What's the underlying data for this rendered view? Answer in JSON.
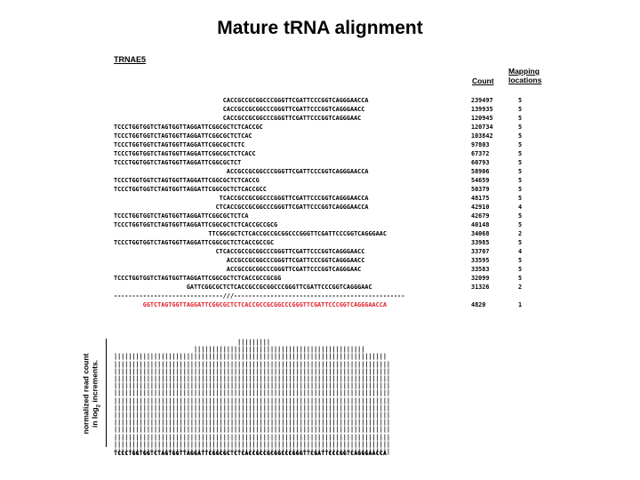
{
  "title": "Mature tRNA alignment",
  "gene_name": "TRNAE5",
  "headers": {
    "count": "Count",
    "mapping": "Mapping locations"
  },
  "rows": [
    {
      "seq": "                              CACCGCCGCGGCCCGGGTTCGATTCCCGGTCAGGGAACCA",
      "count": "239497",
      "map": "5"
    },
    {
      "seq": "                              CACCGCCGCGGCCCGGGTTCGATTCCCGGTCAGGGAACC",
      "count": "139935",
      "map": "5"
    },
    {
      "seq": "                              CACCGCCGCGGCCCGGGTTCGATTCCCGGTCAGGGAAC",
      "count": "120945",
      "map": "5"
    },
    {
      "seq": "TCCCTGGTGGTCTAGTGGTTAGGATTCGGCGCTCTCACCGC",
      "count": "120734",
      "map": "5"
    },
    {
      "seq": "TCCCTGGTGGTCTAGTGGTTAGGATTCGGCGCTCTCAC",
      "count": "103842",
      "map": "5"
    },
    {
      "seq": "TCCCTGGTGGTCTAGTGGTTAGGATTCGGCGCTCTC",
      "count": "97803",
      "map": "5"
    },
    {
      "seq": "TCCCTGGTGGTCTAGTGGTTAGGATTCGGCGCTCTCACC",
      "count": "67372",
      "map": "5"
    },
    {
      "seq": "TCCCTGGTGGTCTAGTGGTTAGGATTCGGCGCTCT",
      "count": "60793",
      "map": "5"
    },
    {
      "seq": "                               ACCGCCGCGGCCCGGGTTCGATTCCCGGTCAGGGAACCA",
      "count": "58906",
      "map": "5"
    },
    {
      "seq": "TCCCTGGTGGTCTAGTGGTTAGGATTCGGCGCTCTCACCG",
      "count": "54659",
      "map": "5"
    },
    {
      "seq": "TCCCTGGTGGTCTAGTGGTTAGGATTCGGCGCTCTCACCGCC",
      "count": "50379",
      "map": "5"
    },
    {
      "seq": "                             TCACCGCCGCGGCCCGGGTTCGATTCCCGGTCAGGGAACCA",
      "count": "48175",
      "map": "5"
    },
    {
      "seq": "                            CTCACCGCCGCGGCCCGGGTTCGATTCCCGGTCAGGGAACCA",
      "count": "42910",
      "map": "4"
    },
    {
      "seq": "TCCCTGGTGGTCTAGTGGTTAGGATTCGGCGCTCTCA",
      "count": "42679",
      "map": "5"
    },
    {
      "seq": "TCCCTGGTGGTCTAGTGGTTAGGATTCGGCGCTCTCACCGCCGCG",
      "count": "40148",
      "map": "5"
    },
    {
      "seq": "                          TTCGGCGCTCTCACCGCCGCGGCCCGGGTTCGATTCCCGGTCAGGGAAC",
      "count": "34068",
      "map": "2"
    },
    {
      "seq": "TCCCTGGTGGTCTAGTGGTTAGGATTCGGCGCTCTCACCGCCGC",
      "count": "33985",
      "map": "5"
    },
    {
      "seq": "                            CTCACCGCCGCGGCCCGGGTTCGATTCCCGGTCAGGGAACC",
      "count": "33707",
      "map": "4"
    },
    {
      "seq": "                               ACCGCCGCGGCCCGGGTTCGATTCCCGGTCAGGGAACC",
      "count": "33595",
      "map": "5"
    },
    {
      "seq": "                               ACCGCCGCGGCCCGGGTTCGATTCCCGGTCAGGGAAC",
      "count": "33583",
      "map": "5"
    },
    {
      "seq": "TCCCTGGTGGTCTAGTGGTTAGGATTCGGCGCTCTCACCGCCGCGG",
      "count": "32099",
      "map": "5"
    },
    {
      "seq": "                    GATTCGGCGCTCTCACCGCCGCGGCCCGGGTTCGATTCCCGGTCAGGGAAC",
      "count": "31326",
      "map": "2"
    }
  ],
  "separator": "------------------------------///-----------------------------------------------",
  "highlight": {
    "seq": "        GGTCTAGTGGTTAGGATTCGGCGCTCTCACCGCCGCGGCCCGGGTTCGATTCCCGGTCAGGGAACCA",
    "count": "4820",
    "map": "1"
  },
  "histogram": [
    "                                  |||||||||",
    "                      |||||||||||||||||||||||||||||||||||||||||||||||",
    "|||||||||||||||||||||||||||||||||||||||||||||||||||||||||||||||||||||||||||",
    "||||||||||||||||||||||||||||||||||||||||||||||||||||||||||||||||||||||||||||",
    "||||||||||||||||||||||||||||||||||||||||||||||||||||||||||||||||||||||||||||",
    "||||||||||||||||||||||||||||||||||||||||||||||||||||||||||||||||||||||||||||",
    "||||||||||||||||||||||||||||||||||||||||||||||||||||||||||||||||||||||||||||",
    "||||||||||||||||||||||||||||||||||||||||||||||||||||||||||||||||||||||||||||",
    "||||||||||||||||||||||||||||||||||||||||||||||||||||||||||||||||||||||||||||",
    "||||||||||||||||||||||||||||||||||||||||||||||||||||||||||||||||||||||||||||",
    "||||||||||||||||||||||||||||||||||||||||||||||||||||||||||||||||||||||||||||",
    "||||||||||||||||||||||||||||||||||||||||||||||||||||||||||||||||||||||||||||",
    "||||||||||||||||||||||||||||||||||||||||||||||||||||||||||||||||||||||||||||",
    "||||||||||||||||||||||||||||||||||||||||||||||||||||||||||||||||||||||||||||",
    "||||||||||||||||||||||||||||||||||||||||||||||||||||||||||||||||||||||||||||",
    "||||||||||||||||||||||||||||||||||||||||||||||||||||||||||||||||||||||||||||"
  ],
  "reference": "TCCCTGGTGGTCTAGTGGTTAGGATTCGGCGCTCTCACCGCCGCGGCCCGGGTTCGATTCCCGGTCAGGGAACCA",
  "ylabel": {
    "line1": "normalized read count",
    "line2a": "in log",
    "line2sub": "2",
    "line2b": " increments."
  },
  "colors": {
    "highlight": "#e0202a"
  }
}
